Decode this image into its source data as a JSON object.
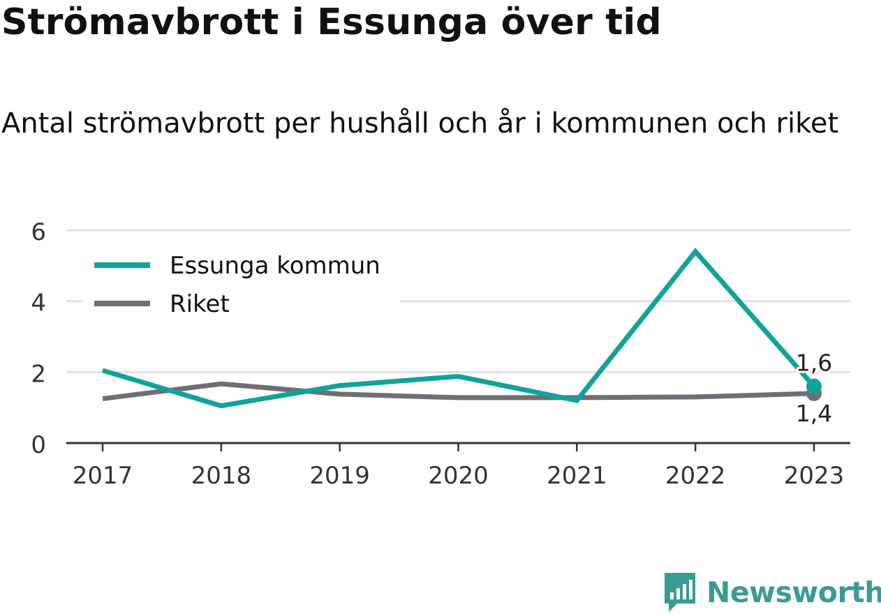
{
  "title": "Strömavbrott i Essunga över tid",
  "subtitle": "Antal strömavbrott per hushåll och år i kommunen och riket",
  "brand": {
    "name": "Newsworthy",
    "icon": "newsworthy-logo-icon",
    "color": "#3c9a94"
  },
  "chart_data": {
    "type": "line",
    "x": [
      "2017",
      "2018",
      "2019",
      "2020",
      "2021",
      "2022",
      "2023"
    ],
    "ylim": [
      0,
      6
    ],
    "yticks": [
      0,
      2,
      4,
      6
    ],
    "grid": true,
    "legend": "top-left",
    "series": [
      {
        "name": "Essunga kommun",
        "color": "#10a399",
        "values": [
          2.05,
          1.05,
          1.62,
          1.88,
          1.2,
          5.4,
          1.6
        ],
        "end_label": "1,6"
      },
      {
        "name": "Riket",
        "color": "#6e6e75",
        "values": [
          1.25,
          1.67,
          1.38,
          1.28,
          1.28,
          1.3,
          1.4
        ],
        "end_label": "1,4"
      }
    ]
  }
}
